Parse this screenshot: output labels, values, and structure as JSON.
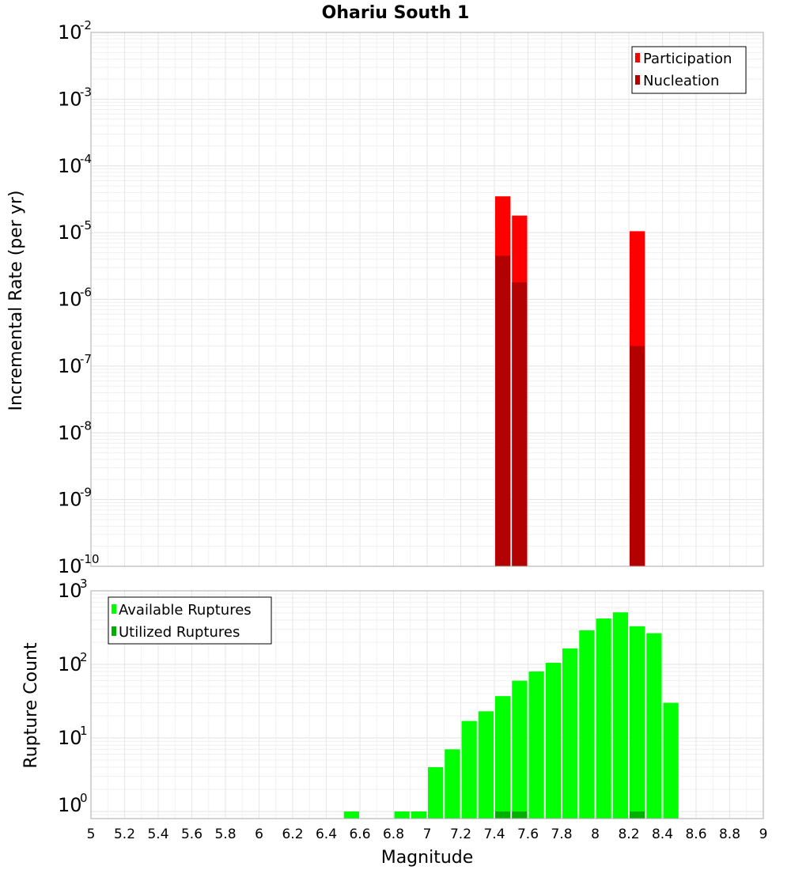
{
  "chart_data": [
    {
      "type": "bar",
      "title": "Ohariu South 1",
      "xlabel": "Magnitude",
      "ylabel": "Incremental Rate (per yr)",
      "y_scale": "log",
      "ylim": [
        1e-10,
        0.01
      ],
      "xlim": [
        5,
        9
      ],
      "y_ticks": [
        {
          "base": "10",
          "exp": "-10"
        },
        {
          "base": "10",
          "exp": "-9"
        },
        {
          "base": "10",
          "exp": "-8"
        },
        {
          "base": "10",
          "exp": "-7"
        },
        {
          "base": "10",
          "exp": "-6"
        },
        {
          "base": "10",
          "exp": "-5"
        },
        {
          "base": "10",
          "exp": "-4"
        },
        {
          "base": "10",
          "exp": "-3"
        },
        {
          "base": "10",
          "exp": "-2"
        }
      ],
      "grid": true,
      "legend_position": "top-right",
      "series": [
        {
          "name": "Participation",
          "color": "#ff0000",
          "x": [
            7.45,
            7.55,
            8.25
          ],
          "values": [
            3.5e-05,
            1.8e-05,
            1.05e-05
          ]
        },
        {
          "name": "Nucleation",
          "color": "#b30000",
          "x": [
            7.45,
            7.55,
            8.25
          ],
          "values": [
            4.5e-06,
            1.8e-06,
            2e-07
          ]
        }
      ]
    },
    {
      "type": "bar",
      "xlabel": "Magnitude",
      "ylabel": "Rupture Count",
      "y_scale": "log",
      "ylim": [
        0.8,
        1000
      ],
      "xlim": [
        5,
        9
      ],
      "y_ticks": [
        {
          "base": "10",
          "exp": "0"
        },
        {
          "base": "10",
          "exp": "1"
        },
        {
          "base": "10",
          "exp": "2"
        },
        {
          "base": "10",
          "exp": "3"
        }
      ],
      "x_ticks": [
        "5",
        "5.2",
        "5.4",
        "5.6",
        "5.8",
        "6",
        "6.2",
        "6.4",
        "6.6",
        "6.8",
        "7",
        "7.2",
        "7.4",
        "7.6",
        "7.8",
        "8",
        "8.2",
        "8.4",
        "8.6",
        "8.8",
        "9"
      ],
      "grid": true,
      "legend_position": "top-left",
      "series": [
        {
          "name": "Available Ruptures",
          "color": "#00ff00",
          "x": [
            6.55,
            6.85,
            6.95,
            7.05,
            7.15,
            7.25,
            7.35,
            7.45,
            7.55,
            7.65,
            7.75,
            7.85,
            7.95,
            8.05,
            8.15,
            8.25,
            8.35,
            8.45
          ],
          "values": [
            1,
            1,
            1,
            4,
            7,
            17,
            23,
            37,
            60,
            80,
            105,
            165,
            290,
            420,
            510,
            330,
            265,
            30
          ]
        },
        {
          "name": "Utilized Ruptures",
          "color": "#00b000",
          "x": [
            7.45,
            7.55,
            8.25
          ],
          "values": [
            1,
            1,
            1
          ]
        }
      ]
    }
  ]
}
